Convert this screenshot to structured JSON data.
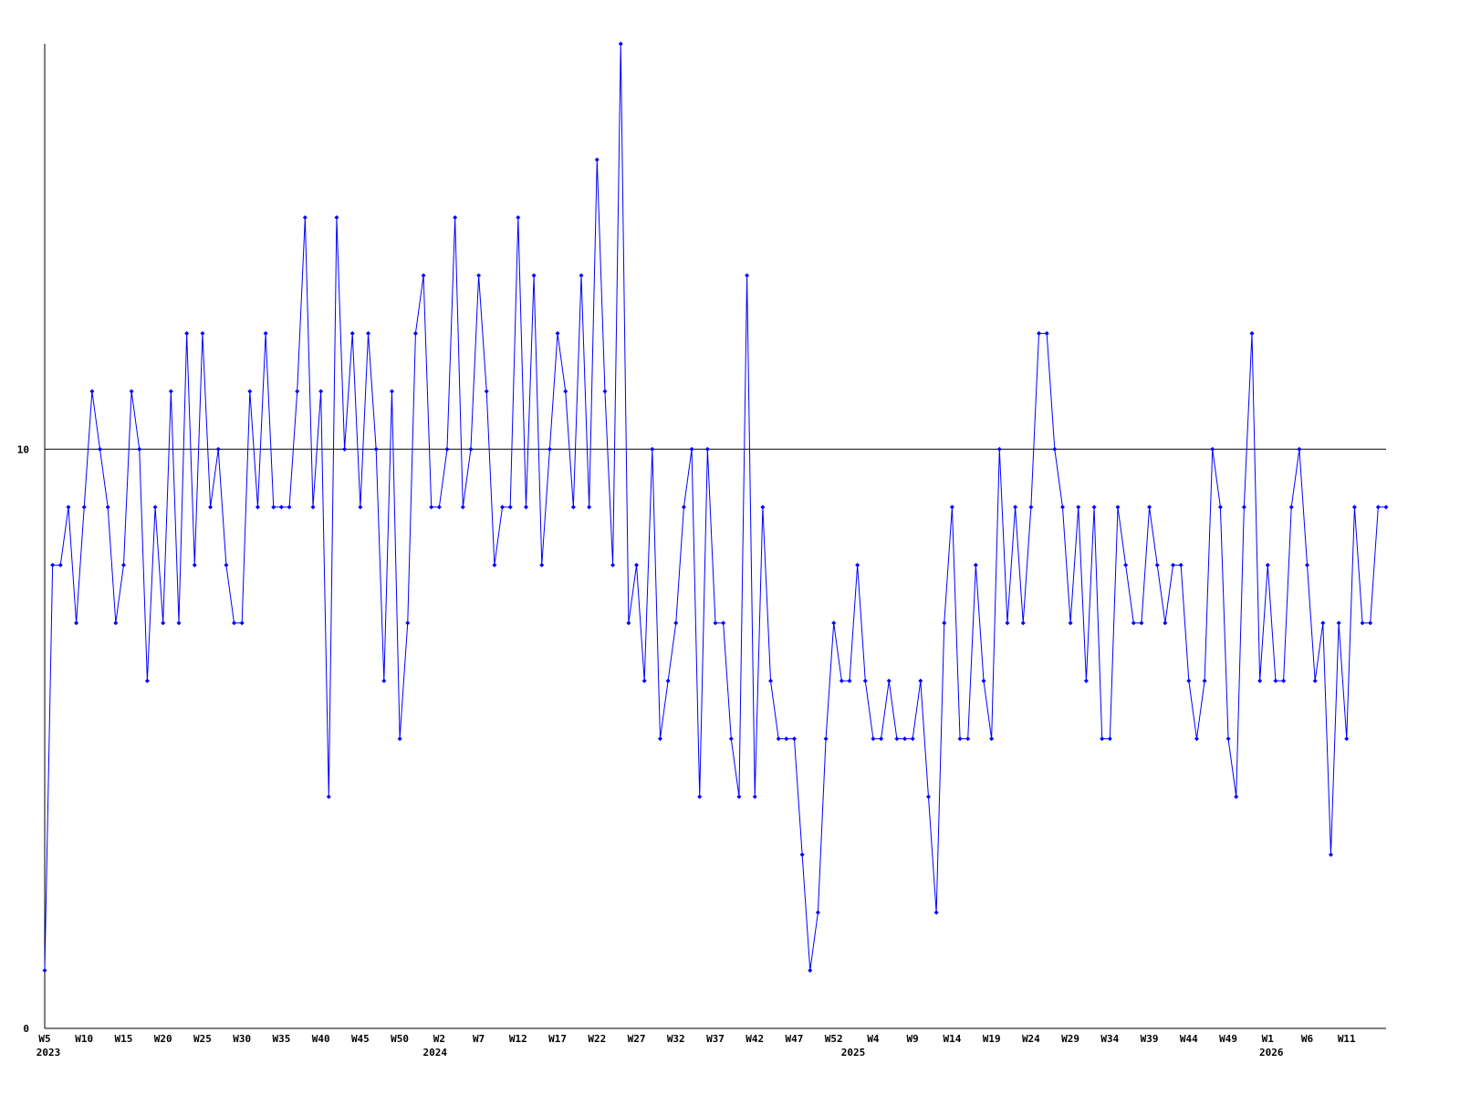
{
  "chart_data": {
    "type": "line",
    "categories": [
      "W5",
      null,
      null,
      null,
      null,
      "W10",
      null,
      null,
      null,
      null,
      "W15",
      null,
      null,
      null,
      null,
      "W20",
      null,
      null,
      null,
      null,
      "W25",
      null,
      null,
      null,
      null,
      "W30",
      null,
      null,
      null,
      null,
      "W35",
      null,
      null,
      null,
      null,
      "W40",
      null,
      null,
      null,
      null,
      "W45",
      null,
      null,
      null,
      null,
      "W50",
      null,
      null,
      null,
      null,
      "W2",
      null,
      null,
      null,
      null,
      "W7",
      null,
      null,
      null,
      null,
      "W12",
      null,
      null,
      null,
      null,
      "W17",
      null,
      null,
      null,
      null,
      "W22",
      null,
      null,
      null,
      null,
      "W27",
      null,
      null,
      null,
      null,
      "W32",
      null,
      null,
      null,
      null,
      "W37",
      null,
      null,
      null,
      null,
      "W42",
      null,
      null,
      null,
      null,
      "W47",
      null,
      null,
      null,
      null,
      "W52",
      null,
      null,
      null,
      null,
      "W4",
      null,
      null,
      null,
      null,
      "W9",
      null,
      null,
      null,
      null,
      "W14",
      null,
      null,
      null,
      null,
      "W19",
      null,
      null,
      null,
      null,
      "W24",
      null,
      null,
      null,
      null,
      "W29",
      null,
      null,
      null,
      null,
      "W34",
      null,
      null,
      null,
      null,
      "W39",
      null,
      null,
      null,
      null,
      "W44",
      null,
      null,
      null,
      null,
      "W49",
      null,
      null,
      null,
      null,
      "W1",
      null,
      null,
      null,
      null,
      "W6",
      null,
      null,
      null,
      null,
      "W11",
      null,
      null,
      null,
      null,
      null
    ],
    "years": [
      "2023",
      null,
      null,
      null,
      null,
      null,
      null,
      null,
      null,
      null,
      null,
      null,
      null,
      null,
      null,
      null,
      null,
      null,
      null,
      null,
      null,
      null,
      null,
      null,
      null,
      null,
      null,
      null,
      null,
      null,
      null,
      null,
      null,
      null,
      null,
      null,
      null,
      null,
      null,
      null,
      null,
      null,
      null,
      null,
      null,
      null,
      null,
      null,
      null,
      "2024",
      null,
      null,
      null,
      null,
      null,
      null,
      null,
      null,
      null,
      null,
      null,
      null,
      null,
      null,
      null,
      null,
      null,
      null,
      null,
      null,
      null,
      null,
      null,
      null,
      null,
      null,
      null,
      null,
      null,
      null,
      null,
      null,
      null,
      null,
      null,
      null,
      null,
      null,
      null,
      null,
      null,
      null,
      null,
      null,
      null,
      null,
      null,
      null,
      null,
      null,
      null,
      null,
      "2025",
      null,
      null,
      null,
      null,
      null,
      null,
      null,
      null,
      null,
      null,
      null,
      null,
      null,
      null,
      null,
      null,
      null,
      null,
      null,
      null,
      null,
      null,
      null,
      null,
      null,
      null,
      null,
      null,
      null,
      null,
      null,
      null,
      null,
      null,
      null,
      null,
      null,
      null,
      null,
      null,
      null,
      null,
      null,
      null,
      null,
      null,
      null,
      null,
      null,
      null,
      null,
      null,
      "2026",
      null,
      null,
      null,
      null,
      null,
      null,
      null,
      null,
      null,
      null,
      null,
      null,
      null,
      null,
      null
    ],
    "series": [
      {
        "color": "#0000ff",
        "values": [
          1,
          8,
          8,
          9,
          7,
          9,
          11,
          10,
          9,
          7,
          8,
          11,
          10,
          6,
          9,
          7,
          11,
          7,
          12,
          8,
          12,
          9,
          10,
          8,
          7,
          7,
          11,
          9,
          12,
          9,
          9,
          9,
          11,
          14,
          9,
          11,
          4,
          14,
          10,
          12,
          9,
          12,
          10,
          6,
          11,
          5,
          7,
          12,
          13,
          9,
          9,
          10,
          14,
          9,
          10,
          13,
          11,
          8,
          9,
          9,
          14,
          9,
          13,
          8,
          10,
          12,
          11,
          9,
          13,
          9,
          15,
          11,
          8,
          17,
          7,
          8,
          6,
          10,
          5,
          6,
          7,
          9,
          10,
          4,
          10,
          7,
          7,
          5,
          4,
          13,
          4,
          9,
          6,
          5,
          5,
          5,
          3,
          1,
          2,
          5,
          7,
          6,
          6,
          8,
          6,
          5,
          5,
          6,
          5,
          5,
          5,
          6,
          4,
          2,
          7,
          9,
          5,
          5,
          8,
          6,
          5,
          10,
          7,
          9,
          7,
          9,
          12,
          12,
          10,
          9,
          7,
          9,
          6,
          9,
          5,
          5,
          9,
          8,
          7,
          7,
          9,
          8,
          7,
          8,
          8,
          6,
          5,
          6,
          10,
          9,
          5,
          4,
          9,
          12,
          6,
          8,
          6,
          6,
          9,
          10,
          8,
          6,
          7,
          3,
          7,
          5,
          9,
          7,
          7,
          9,
          9
        ]
      }
    ],
    "ylim": [
      0,
      17
    ],
    "yticks": [
      0,
      10
    ],
    "grid": true
  }
}
